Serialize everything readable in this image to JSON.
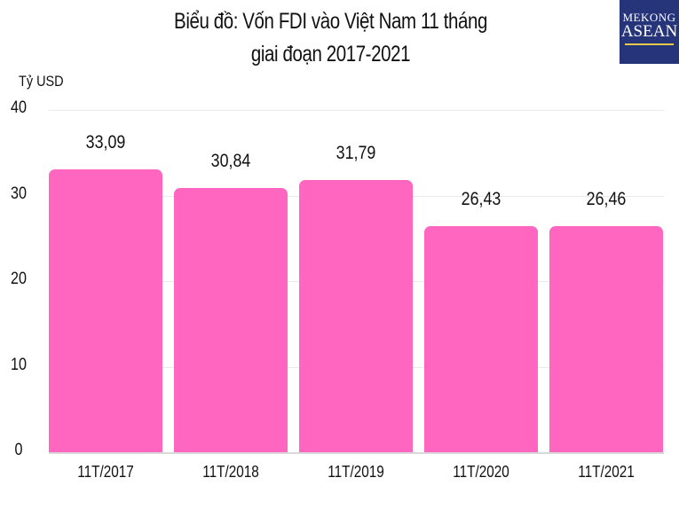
{
  "title": {
    "line1": "Biểu đồ: Vốn FDI vào Việt Nam 11 tháng",
    "line2": "giai đoạn 2017-2021"
  },
  "logo": {
    "line1": "MEKONG",
    "line2": "ASEAN"
  },
  "colors": {
    "bar": "#ff66c0",
    "logo_bg": "#26347a",
    "grid": "#ebebeb"
  },
  "chart_data": {
    "type": "bar",
    "title": "Biểu đồ: Vốn FDI vào Việt Nam 11 tháng giai đoạn 2017-2021",
    "xlabel": "",
    "ylabel": "Tỷ USD",
    "categories": [
      "11T/2017",
      "11T/2018",
      "11T/2019",
      "11T/2020",
      "11T/2021"
    ],
    "values": [
      33.09,
      30.84,
      31.79,
      26.43,
      26.46
    ],
    "value_labels": [
      "33,09",
      "30,84",
      "31,79",
      "26,43",
      "26,46"
    ],
    "ylim": [
      0,
      40
    ],
    "yticks": [
      "0",
      "10",
      "20",
      "30",
      "40"
    ],
    "grid": true,
    "legend": null
  }
}
